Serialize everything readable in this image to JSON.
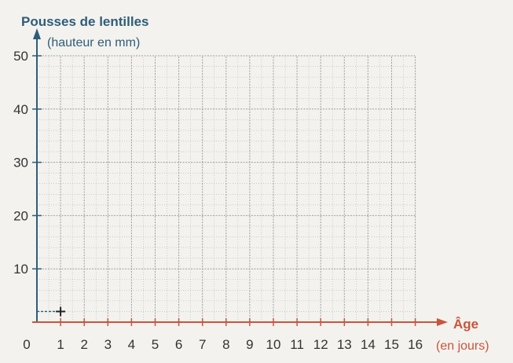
{
  "chart_data": {
    "type": "scatter",
    "ylabel": "Pousses de lentilles",
    "ylabel_sub": "(hauteur en mm)",
    "xlabel": "Âge",
    "xlabel_sub": "(en jours)",
    "xlim": [
      0,
      16
    ],
    "ylim": [
      0,
      50
    ],
    "x_ticks": [
      "0",
      "1",
      "2",
      "3",
      "4",
      "5",
      "6",
      "7",
      "8",
      "9",
      "10",
      "11",
      "12",
      "13",
      "14",
      "15",
      "16"
    ],
    "y_ticks": [
      "10",
      "20",
      "30",
      "40",
      "50"
    ],
    "grid": true,
    "points": [
      {
        "x": 1,
        "y": 2
      }
    ],
    "colors": {
      "y_axis": "#2e5d78",
      "x_axis": "#c9553a",
      "grid": "#8a8a8a",
      "point": "#222222",
      "guide": "#2e5d78"
    }
  }
}
